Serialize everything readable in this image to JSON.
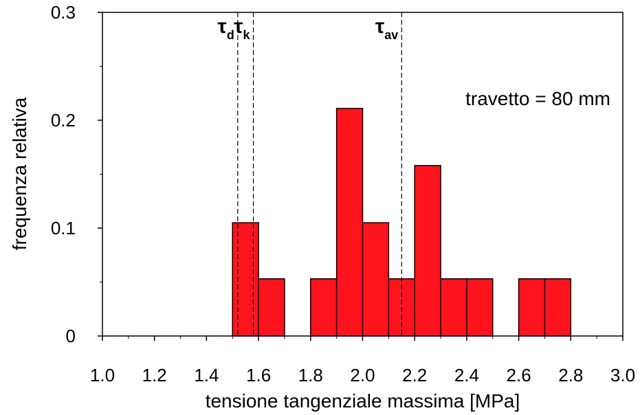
{
  "chart_data": {
    "type": "bar",
    "xlabel": "tensione tangenziale massima [MPa]",
    "ylabel": "frequenza relativa",
    "xlim": [
      1.0,
      3.0
    ],
    "ylim": [
      0,
      0.3
    ],
    "x_ticks": [
      "1.0",
      "1.2",
      "1.4",
      "1.6",
      "1.8",
      "2.0",
      "2.2",
      "2.4",
      "2.6",
      "2.8",
      "3.0"
    ],
    "y_ticks": [
      "0",
      "0.1",
      "0.2",
      "0.3"
    ],
    "bin_width": 0.1,
    "bins": [
      {
        "x0": 1.5,
        "x1": 1.6,
        "value": 0.105
      },
      {
        "x0": 1.6,
        "x1": 1.7,
        "value": 0.053
      },
      {
        "x0": 1.8,
        "x1": 1.9,
        "value": 0.053
      },
      {
        "x0": 1.9,
        "x1": 2.0,
        "value": 0.211
      },
      {
        "x0": 2.0,
        "x1": 2.1,
        "value": 0.105
      },
      {
        "x0": 2.1,
        "x1": 2.2,
        "value": 0.053
      },
      {
        "x0": 2.2,
        "x1": 2.3,
        "value": 0.158
      },
      {
        "x0": 2.3,
        "x1": 2.4,
        "value": 0.053
      },
      {
        "x0": 2.4,
        "x1": 2.5,
        "value": 0.053
      },
      {
        "x0": 2.6,
        "x1": 2.7,
        "value": 0.053
      },
      {
        "x0": 2.7,
        "x1": 2.8,
        "value": 0.053
      }
    ],
    "bar_color": "#ff141e",
    "reference_lines": [
      {
        "symbol": "τ",
        "subscript": "d",
        "x": 1.52
      },
      {
        "symbol": "τ",
        "subscript": "k",
        "x": 1.58
      },
      {
        "symbol": "τ",
        "subscript": "av",
        "x": 2.15
      }
    ],
    "annotation": "travetto = 80 mm",
    "grid": false
  }
}
